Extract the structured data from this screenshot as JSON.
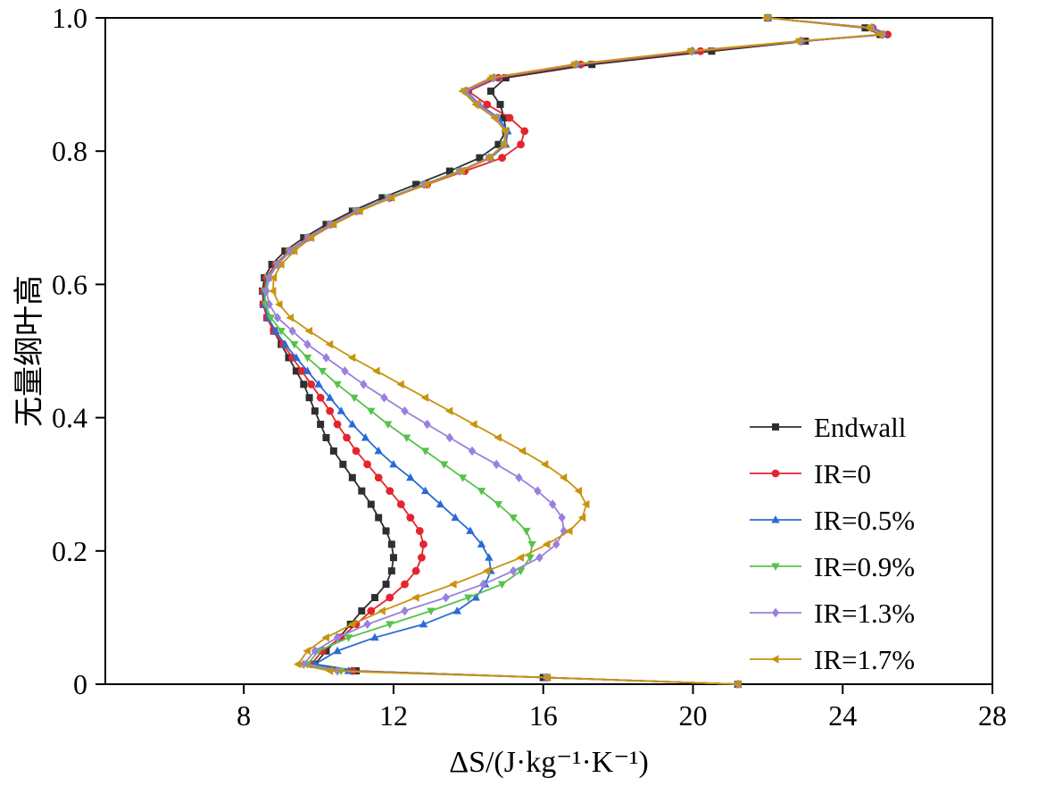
{
  "chart_data": {
    "type": "line",
    "title": "",
    "xlabel": "ΔS/(J·kg⁻¹·K⁻¹)",
    "ylabel": "无量纲叶高",
    "xlim": [
      4.3,
      28
    ],
    "ylim": [
      0,
      1
    ],
    "grid": false,
    "legend_position": "right-middle",
    "x_ticks": [
      {
        "v": 8,
        "label": "8"
      },
      {
        "v": 12,
        "label": "12"
      },
      {
        "v": 16,
        "label": "16"
      },
      {
        "v": 20,
        "label": "20"
      },
      {
        "v": 24,
        "label": "24"
      },
      {
        "v": 28,
        "label": "28"
      }
    ],
    "y_ticks": [
      {
        "v": 0.0,
        "label": "0"
      },
      {
        "v": 0.2,
        "label": "0.2"
      },
      {
        "v": 0.4,
        "label": "0.4"
      },
      {
        "v": 0.6,
        "label": "0.6"
      },
      {
        "v": 0.8,
        "label": "0.8"
      },
      {
        "v": 1.0,
        "label": "1.0"
      }
    ],
    "y": [
      0,
      0.01,
      0.02,
      0.03,
      0.05,
      0.07,
      0.09,
      0.11,
      0.13,
      0.15,
      0.17,
      0.19,
      0.21,
      0.23,
      0.25,
      0.27,
      0.29,
      0.31,
      0.33,
      0.35,
      0.37,
      0.39,
      0.41,
      0.43,
      0.45,
      0.47,
      0.49,
      0.51,
      0.53,
      0.55,
      0.57,
      0.59,
      0.61,
      0.63,
      0.65,
      0.67,
      0.69,
      0.71,
      0.73,
      0.75,
      0.77,
      0.79,
      0.81,
      0.83,
      0.85,
      0.87,
      0.89,
      0.91,
      0.93,
      0.95,
      0.965,
      0.975,
      0.985,
      1.0
    ],
    "series": [
      {
        "name": "Endwall",
        "color": "#2f2f2f",
        "marker": "square",
        "x": [
          21.2,
          16.0,
          11.0,
          9.9,
          10.2,
          10.55,
          10.85,
          11.15,
          11.5,
          11.8,
          11.95,
          12.0,
          11.95,
          11.8,
          11.6,
          11.4,
          11.15,
          10.9,
          10.65,
          10.4,
          10.2,
          10.05,
          9.9,
          9.75,
          9.6,
          9.4,
          9.2,
          9.0,
          8.8,
          8.62,
          8.52,
          8.5,
          8.55,
          8.75,
          9.1,
          9.6,
          10.2,
          10.9,
          11.7,
          12.6,
          13.5,
          14.3,
          14.8,
          15.0,
          14.95,
          14.85,
          14.6,
          15.0,
          17.3,
          20.5,
          23.0,
          25.0,
          24.6,
          22.0
        ]
      },
      {
        "name": "IR=0",
        "color": "#e4252d",
        "marker": "circle",
        "x": [
          21.2,
          16.1,
          10.9,
          9.8,
          10.1,
          10.6,
          11.0,
          11.4,
          11.9,
          12.3,
          12.6,
          12.75,
          12.8,
          12.7,
          12.45,
          12.2,
          11.9,
          11.6,
          11.3,
          11.0,
          10.75,
          10.5,
          10.3,
          10.05,
          9.8,
          9.55,
          9.3,
          9.05,
          8.8,
          8.62,
          8.52,
          8.52,
          8.6,
          8.85,
          9.2,
          9.7,
          10.3,
          11.0,
          11.9,
          12.9,
          13.9,
          14.9,
          15.4,
          15.5,
          15.1,
          14.5,
          14.0,
          14.8,
          17.0,
          20.2,
          22.9,
          25.2,
          24.8,
          22.0
        ]
      },
      {
        "name": "IR=0.5%",
        "color": "#2a6bd4",
        "marker": "triangle-up",
        "x": [
          21.2,
          16.1,
          10.8,
          9.9,
          10.5,
          11.5,
          12.8,
          13.7,
          14.2,
          14.45,
          14.6,
          14.55,
          14.35,
          14.05,
          13.65,
          13.25,
          12.85,
          12.45,
          12.0,
          11.6,
          11.25,
          10.9,
          10.6,
          10.3,
          10.0,
          9.7,
          9.4,
          9.1,
          8.85,
          8.65,
          8.55,
          8.55,
          8.65,
          8.9,
          9.25,
          9.75,
          10.35,
          11.05,
          11.9,
          12.85,
          13.8,
          14.6,
          15.0,
          15.05,
          14.8,
          14.3,
          13.95,
          14.7,
          16.9,
          20.0,
          22.9,
          25.1,
          24.8,
          22.0
        ]
      },
      {
        "name": "IR=0.9%",
        "color": "#56c24a",
        "marker": "triangle-down",
        "x": [
          21.2,
          16.1,
          10.6,
          9.7,
          10.0,
          10.8,
          11.9,
          13.0,
          14.0,
          14.9,
          15.4,
          15.65,
          15.7,
          15.55,
          15.2,
          14.8,
          14.35,
          13.85,
          13.35,
          12.85,
          12.35,
          11.85,
          11.4,
          10.95,
          10.5,
          10.1,
          9.7,
          9.35,
          9.0,
          8.72,
          8.58,
          8.56,
          8.65,
          8.88,
          9.22,
          9.72,
          10.32,
          11.0,
          11.85,
          12.8,
          13.75,
          14.55,
          14.95,
          15.0,
          14.75,
          14.25,
          13.9,
          14.65,
          16.85,
          19.95,
          22.85,
          25.05,
          24.75,
          22.0
        ]
      },
      {
        "name": "IR=1.3%",
        "color": "#9a80dd",
        "marker": "diamond",
        "x": [
          21.2,
          16.1,
          10.5,
          9.6,
          9.9,
          10.5,
          11.3,
          12.3,
          13.4,
          14.4,
          15.2,
          15.9,
          16.35,
          16.55,
          16.5,
          16.25,
          15.85,
          15.35,
          14.75,
          14.1,
          13.5,
          12.9,
          12.3,
          11.75,
          11.2,
          10.7,
          10.2,
          9.7,
          9.3,
          8.9,
          8.68,
          8.6,
          8.68,
          8.9,
          9.25,
          9.72,
          10.32,
          11.02,
          11.87,
          12.82,
          13.77,
          14.55,
          14.95,
          15.0,
          14.75,
          14.27,
          13.92,
          14.67,
          16.87,
          19.97,
          22.87,
          25.07,
          24.77,
          22.0
        ]
      },
      {
        "name": "IR=1.7%",
        "color": "#c9930e",
        "marker": "triangle-left",
        "x": [
          21.2,
          16.1,
          10.3,
          9.45,
          9.7,
          10.2,
          10.9,
          11.7,
          12.6,
          13.6,
          14.5,
          15.4,
          16.1,
          16.7,
          17.05,
          17.15,
          16.95,
          16.55,
          16.05,
          15.45,
          14.8,
          14.15,
          13.5,
          12.85,
          12.2,
          11.55,
          10.9,
          10.3,
          9.75,
          9.25,
          8.95,
          8.78,
          8.8,
          9.0,
          9.35,
          9.8,
          10.4,
          11.1,
          11.95,
          12.88,
          13.82,
          14.58,
          14.95,
          14.98,
          14.7,
          14.2,
          13.85,
          14.6,
          16.8,
          19.9,
          22.8,
          25.0,
          24.7,
          21.95
        ]
      }
    ],
    "legend_entries": [
      "Endwall",
      "IR=0",
      "IR=0.5%",
      "IR=0.9%",
      "IR=1.3%",
      "IR=1.7%"
    ]
  }
}
